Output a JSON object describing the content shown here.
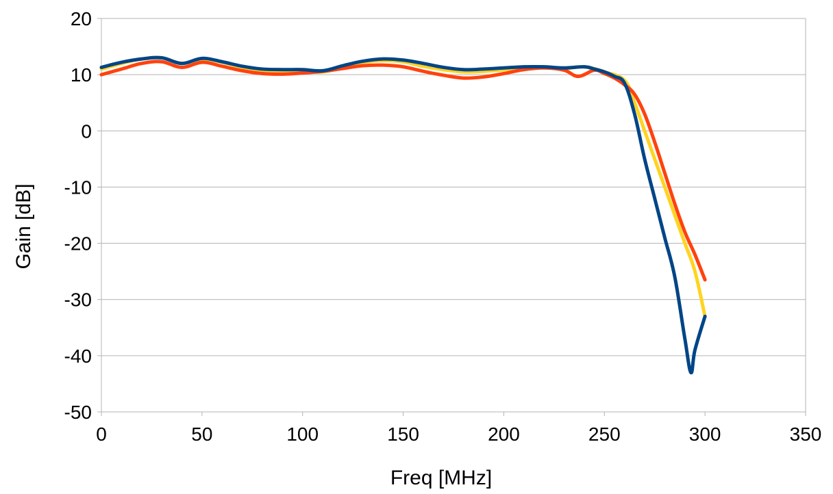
{
  "chart_data": {
    "type": "line",
    "title": "",
    "xlabel": "Freq [MHz]",
    "ylabel": "Gain [dB]",
    "xlim": [
      0,
      350
    ],
    "ylim": [
      -50,
      20
    ],
    "x_ticks": [
      "0",
      "50",
      "100",
      "150",
      "200",
      "250",
      "300",
      "350"
    ],
    "y_ticks": [
      "20",
      "10",
      "0",
      "-10",
      "-20",
      "-30",
      "-40",
      "-50"
    ],
    "grid": "horizontal",
    "legend": "none",
    "series": [
      {
        "color": "#ffd320",
        "x": [
          0,
          10,
          20,
          30,
          40,
          50,
          60,
          70,
          80,
          90,
          100,
          110,
          120,
          130,
          140,
          150,
          160,
          170,
          180,
          190,
          200,
          210,
          220,
          230,
          240,
          250,
          260,
          265,
          270,
          275,
          280,
          285,
          290,
          295,
          300
        ],
        "y": [
          11,
          12,
          12.8,
          13,
          12,
          12.8,
          12.2,
          11.3,
          10.8,
          10.6,
          10.6,
          10.5,
          11.3,
          12.2,
          12.5,
          12.3,
          11.5,
          10.9,
          10.5,
          10.6,
          10.9,
          11.3,
          11.4,
          11.1,
          11.4,
          10.5,
          9,
          5,
          0,
          -5,
          -10,
          -15,
          -20,
          -25,
          -33
        ]
      },
      {
        "color": "#ff420e",
        "x": [
          0,
          10,
          20,
          30,
          40,
          50,
          60,
          70,
          80,
          90,
          100,
          110,
          120,
          130,
          140,
          150,
          160,
          170,
          180,
          190,
          200,
          210,
          220,
          230,
          237,
          245,
          250,
          255,
          260,
          265,
          270,
          275,
          280,
          285,
          290,
          295,
          300
        ],
        "y": [
          10,
          11,
          12,
          12.3,
          11.3,
          12.2,
          11.5,
          10.7,
          10.2,
          10.1,
          10.3,
          10.6,
          11.1,
          11.6,
          11.7,
          11.4,
          10.6,
          9.9,
          9.4,
          9.6,
          10.2,
          10.9,
          11.2,
          10.8,
          9.7,
          10.8,
          10.2,
          9.4,
          8.2,
          6.5,
          3,
          -2,
          -7.5,
          -13,
          -18,
          -22,
          -26.5
        ]
      },
      {
        "color": "#004586",
        "x": [
          0,
          10,
          20,
          30,
          40,
          50,
          60,
          70,
          80,
          90,
          100,
          110,
          120,
          130,
          140,
          150,
          160,
          170,
          180,
          190,
          200,
          210,
          220,
          230,
          240,
          245,
          250,
          255,
          260,
          265,
          270,
          275,
          280,
          285,
          290,
          293,
          295,
          300
        ],
        "y": [
          11.3,
          12.2,
          12.8,
          13,
          12,
          12.9,
          12.3,
          11.5,
          11,
          10.9,
          10.9,
          10.7,
          11.6,
          12.4,
          12.8,
          12.6,
          12,
          11.3,
          10.9,
          11,
          11.2,
          11.4,
          11.4,
          11.2,
          11.4,
          11,
          10.5,
          9.7,
          8.5,
          3,
          -5,
          -12,
          -19,
          -26,
          -37,
          -43,
          -39,
          -33
        ]
      }
    ]
  }
}
